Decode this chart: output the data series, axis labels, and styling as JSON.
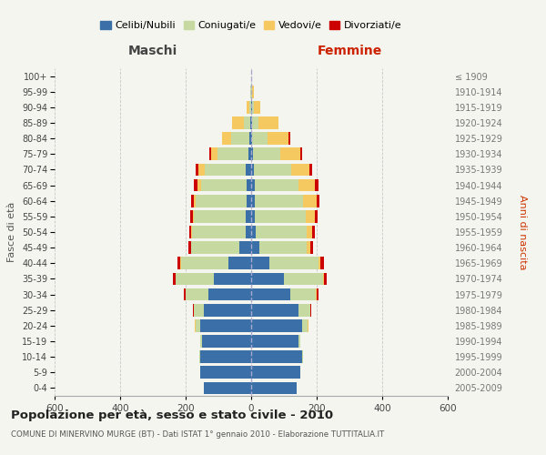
{
  "age_groups": [
    "0-4",
    "5-9",
    "10-14",
    "15-19",
    "20-24",
    "25-29",
    "30-34",
    "35-39",
    "40-44",
    "45-49",
    "50-54",
    "55-59",
    "60-64",
    "65-69",
    "70-74",
    "75-79",
    "80-84",
    "85-89",
    "90-94",
    "95-99",
    "100+"
  ],
  "birth_years": [
    "2005-2009",
    "2000-2004",
    "1995-1999",
    "1990-1994",
    "1985-1989",
    "1980-1984",
    "1975-1979",
    "1970-1974",
    "1965-1969",
    "1960-1964",
    "1955-1959",
    "1950-1954",
    "1945-1949",
    "1940-1944",
    "1935-1939",
    "1930-1934",
    "1925-1929",
    "1920-1924",
    "1915-1919",
    "1910-1914",
    "≤ 1909"
  ],
  "maschi": {
    "celibi": [
      145,
      155,
      155,
      150,
      155,
      145,
      130,
      115,
      70,
      35,
      18,
      17,
      15,
      14,
      18,
      8,
      5,
      2,
      0,
      0,
      0
    ],
    "coniugati": [
      0,
      0,
      2,
      5,
      15,
      30,
      70,
      115,
      145,
      148,
      162,
      158,
      155,
      140,
      125,
      95,
      55,
      20,
      5,
      2,
      0
    ],
    "vedovi": [
      0,
      0,
      0,
      0,
      1,
      1,
      1,
      1,
      1,
      1,
      2,
      3,
      5,
      10,
      18,
      20,
      30,
      35,
      8,
      2,
      0
    ],
    "divorziati": [
      0,
      0,
      0,
      0,
      1,
      2,
      5,
      8,
      10,
      8,
      8,
      8,
      8,
      10,
      8,
      5,
      0,
      0,
      0,
      0,
      0
    ]
  },
  "femmine": {
    "nubili": [
      140,
      150,
      155,
      145,
      155,
      145,
      120,
      100,
      55,
      25,
      14,
      12,
      10,
      10,
      8,
      5,
      4,
      3,
      2,
      0,
      0
    ],
    "coniugate": [
      0,
      0,
      2,
      5,
      18,
      35,
      78,
      120,
      150,
      145,
      155,
      155,
      148,
      135,
      115,
      85,
      45,
      20,
      5,
      2,
      0
    ],
    "vedove": [
      0,
      0,
      0,
      0,
      1,
      1,
      2,
      3,
      5,
      10,
      18,
      28,
      42,
      50,
      55,
      60,
      65,
      60,
      20,
      5,
      0
    ],
    "divorziate": [
      0,
      0,
      0,
      0,
      1,
      2,
      5,
      8,
      12,
      10,
      8,
      8,
      8,
      10,
      8,
      5,
      5,
      0,
      0,
      0,
      0
    ]
  },
  "colors": {
    "celibi": "#3a6fa8",
    "coniugati": "#c5d9a0",
    "vedovi": "#f5c860",
    "divorziati": "#cc0000"
  },
  "xlim": 600,
  "title": "Popolazione per età, sesso e stato civile - 2010",
  "subtitle": "COMUNE DI MINERVINO MURGE (BT) - Dati ISTAT 1° gennaio 2010 - Elaborazione TUTTITALIA.IT",
  "xlabel_left": "Maschi",
  "xlabel_right": "Femmine",
  "ylabel_left": "Fasce di età",
  "ylabel_right": "Anni di nascita",
  "legend_labels": [
    "Celibi/Nubili",
    "Coniugati/e",
    "Vedovi/e",
    "Divorziati/e"
  ],
  "background_color": "#f5f5f0"
}
